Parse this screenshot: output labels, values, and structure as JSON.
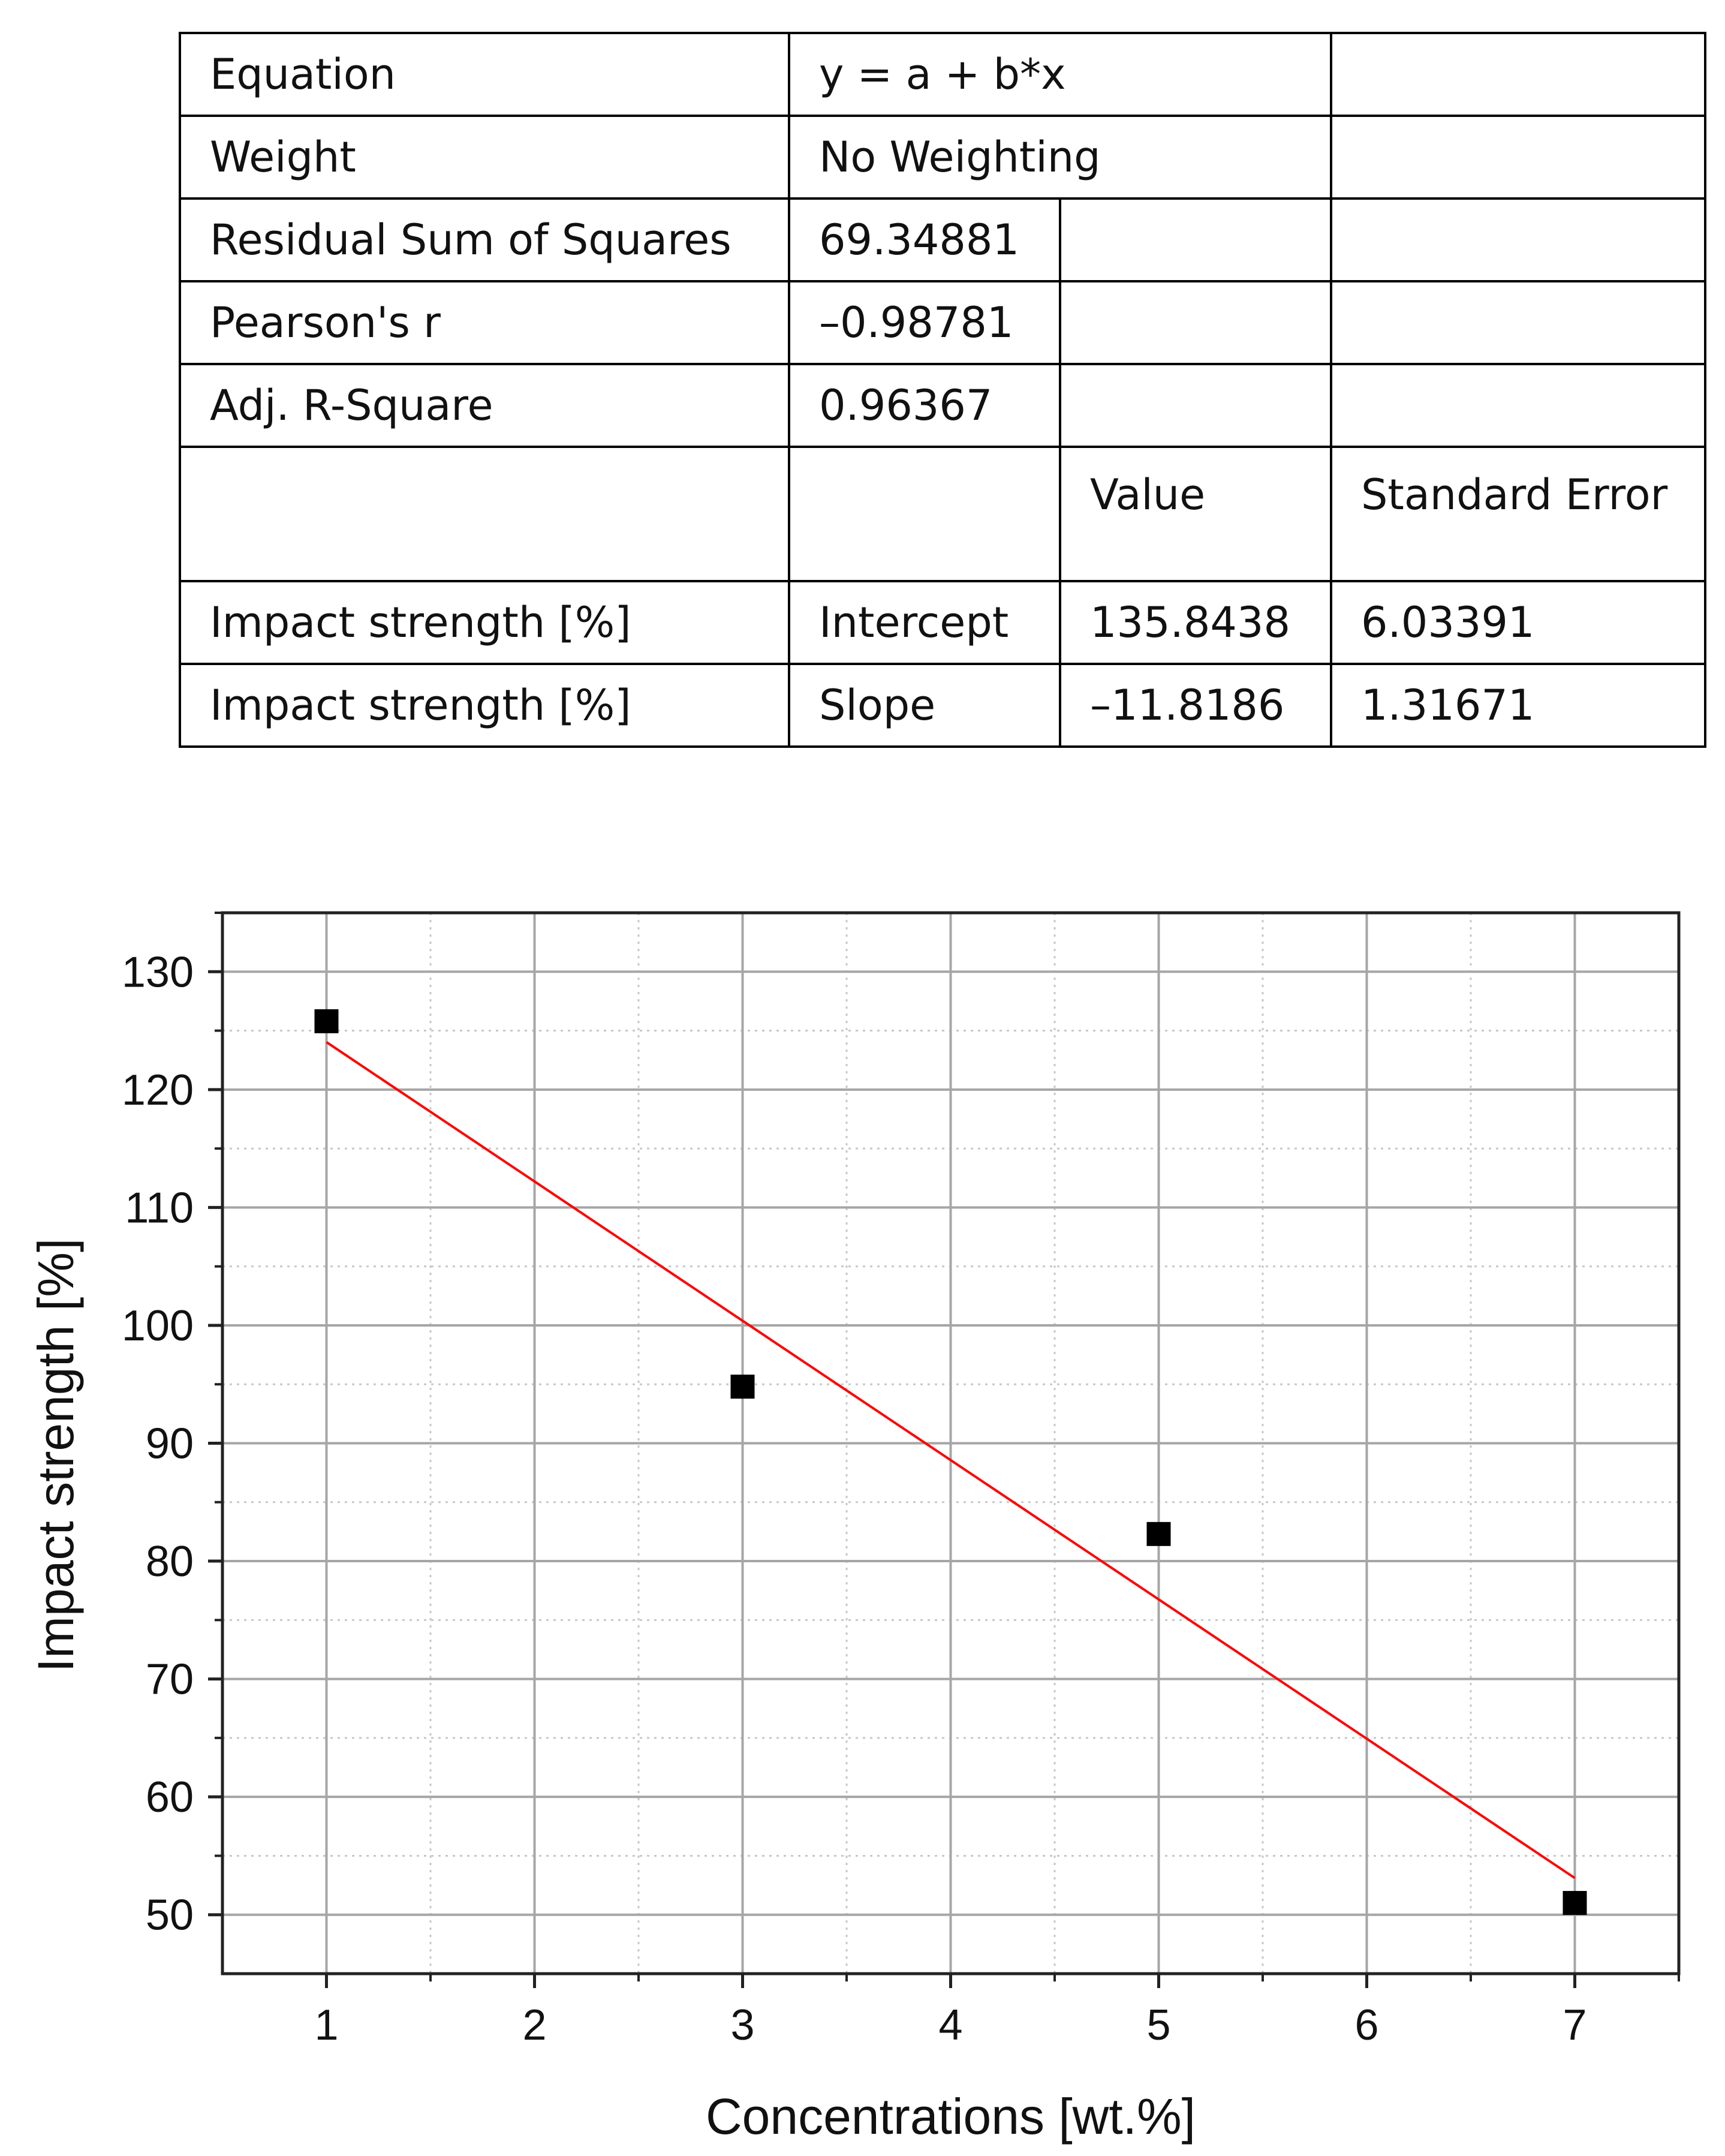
{
  "table": {
    "equation_label": "Equation",
    "equation_value": "y = a + b*x",
    "weight_label": "Weight",
    "weight_value": "No Weighting",
    "rss_label": "Residual Sum of Squares",
    "rss_value": "69.34881",
    "pearson_label": "Pearson's r",
    "pearson_value": "–0.98781",
    "adjr2_label": "Adj. R-Square",
    "adjr2_value": "0.96367",
    "value_header": "Value",
    "stderr_header": "Standard Error",
    "rows": [
      {
        "dependent": "Impact strength [%]",
        "param": "Intercept",
        "value": "135.8438",
        "stderr": "6.03391"
      },
      {
        "dependent": "Impact strength [%]",
        "param": "Slope",
        "value": "–11.8186",
        "stderr": "1.31671"
      }
    ]
  },
  "chart_data": {
    "type": "scatter",
    "xlabel": "Concentrations [wt.%]",
    "ylabel": "Impact strength [%]",
    "xlim": [
      0.5,
      7.5
    ],
    "ylim": [
      45,
      135
    ],
    "xticks": [
      1,
      2,
      3,
      4,
      5,
      6,
      7
    ],
    "yticks": [
      50,
      60,
      70,
      80,
      90,
      100,
      110,
      120,
      130
    ],
    "grid": true,
    "series": [
      {
        "x": [
          1,
          3,
          5,
          7
        ],
        "y": [
          125.8,
          94.8,
          82.3,
          51.0
        ],
        "marker": "square",
        "color": "#000000"
      }
    ],
    "fit": {
      "intercept": 135.8438,
      "slope": -11.8186,
      "x_range": [
        1,
        7
      ],
      "color": "#ff0000"
    }
  }
}
